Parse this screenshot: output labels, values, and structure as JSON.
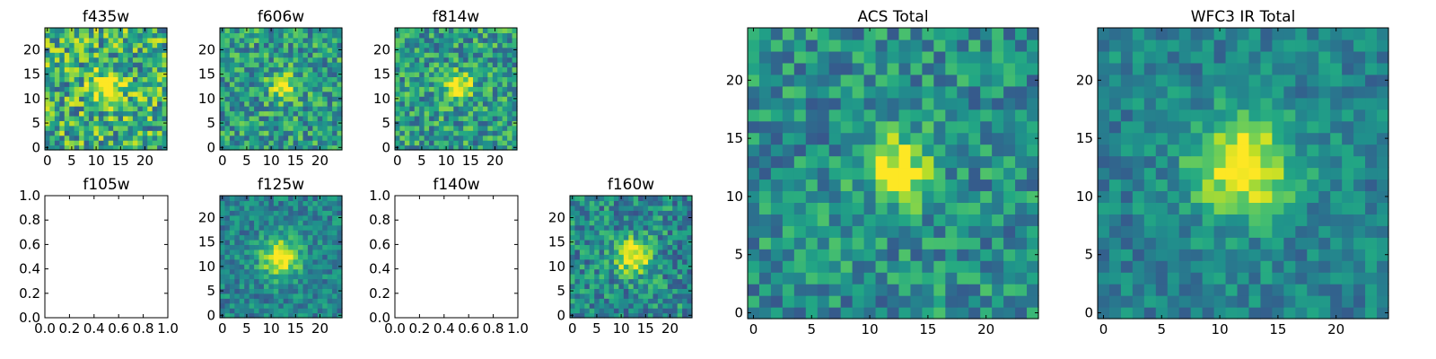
{
  "figure": {
    "description_type": "grid of image cutout panels (heatmaps)",
    "colormap": "viridis"
  },
  "chart_data": [
    {
      "type": "heatmap",
      "title": "f435w",
      "has_image": true,
      "x_ticks": [
        0,
        5,
        10,
        15,
        20
      ],
      "y_ticks": [
        0,
        5,
        10,
        15,
        20
      ],
      "xlim": [
        -0.5,
        24.5
      ],
      "ylim": [
        -0.5,
        24.5
      ],
      "grid_size": 25,
      "source": {
        "x": 12.5,
        "y": 12.5,
        "sigma": 2.2,
        "amp": 0.55
      },
      "noise": 0.42,
      "background": 0.62,
      "seed": 11
    },
    {
      "type": "heatmap",
      "title": "f606w",
      "has_image": true,
      "x_ticks": [
        0,
        5,
        10,
        15,
        20
      ],
      "y_ticks": [
        0,
        5,
        10,
        15,
        20
      ],
      "xlim": [
        -0.5,
        24.5
      ],
      "ylim": [
        -0.5,
        24.5
      ],
      "grid_size": 25,
      "source": {
        "x": 12.5,
        "y": 12.5,
        "sigma": 1.9,
        "amp": 0.5
      },
      "noise": 0.33,
      "background": 0.55,
      "seed": 23
    },
    {
      "type": "heatmap",
      "title": "f814w",
      "has_image": true,
      "x_ticks": [
        0,
        5,
        10,
        15,
        20
      ],
      "y_ticks": [
        0,
        5,
        10,
        15,
        20
      ],
      "xlim": [
        -0.5,
        24.5
      ],
      "ylim": [
        -0.5,
        24.5
      ],
      "grid_size": 25,
      "source": {
        "x": 12.5,
        "y": 12.5,
        "sigma": 1.9,
        "amp": 0.55
      },
      "noise": 0.33,
      "background": 0.55,
      "seed": 37
    },
    {
      "type": "heatmap",
      "title": "f105w",
      "has_image": false,
      "x_ticks": [
        "0.0",
        "0.2",
        "0.4",
        "0.6",
        "0.8",
        "1.0"
      ],
      "y_ticks": [
        "0.0",
        "0.2",
        "0.4",
        "0.6",
        "0.8",
        "1.0"
      ],
      "xlim": [
        0,
        1
      ],
      "ylim": [
        0,
        1
      ]
    },
    {
      "type": "heatmap",
      "title": "f125w",
      "has_image": true,
      "x_ticks": [
        0,
        5,
        10,
        15,
        20
      ],
      "y_ticks": [
        0,
        5,
        10,
        15,
        20
      ],
      "xlim": [
        -0.5,
        24.5
      ],
      "ylim": [
        -0.5,
        24.5
      ],
      "grid_size": 25,
      "source": {
        "x": 12.0,
        "y": 12.0,
        "sigma": 2.8,
        "amp": 0.6
      },
      "noise": 0.22,
      "background": 0.45,
      "seed": 41
    },
    {
      "type": "heatmap",
      "title": "f140w",
      "has_image": false,
      "x_ticks": [
        "0.0",
        "0.2",
        "0.4",
        "0.6",
        "0.8",
        "1.0"
      ],
      "y_ticks": [
        "0.0",
        "0.2",
        "0.4",
        "0.6",
        "0.8",
        "1.0"
      ],
      "xlim": [
        0,
        1
      ],
      "ylim": [
        0,
        1
      ]
    },
    {
      "type": "heatmap",
      "title": "f160w",
      "has_image": true,
      "x_ticks": [
        0,
        5,
        10,
        15,
        20
      ],
      "y_ticks": [
        0,
        5,
        10,
        15,
        20
      ],
      "xlim": [
        -0.5,
        24.5
      ],
      "ylim": [
        -0.5,
        24.5
      ],
      "grid_size": 25,
      "source": {
        "x": 12.5,
        "y": 12.0,
        "sigma": 2.5,
        "amp": 0.6
      },
      "noise": 0.3,
      "background": 0.48,
      "seed": 53
    },
    {
      "type": "heatmap",
      "title": "ACS Total",
      "has_image": true,
      "x_ticks": [
        0,
        5,
        10,
        15,
        20
      ],
      "y_ticks": [
        0,
        5,
        10,
        15,
        20
      ],
      "xlim": [
        -0.5,
        24.5
      ],
      "ylim": [
        -0.5,
        24.5
      ],
      "grid_size": 25,
      "source": {
        "x": 12.5,
        "y": 12.5,
        "sigma": 2.0,
        "amp": 0.55
      },
      "noise": 0.28,
      "background": 0.5,
      "seed": 67
    },
    {
      "type": "heatmap",
      "title": "WFC3 IR Total",
      "has_image": true,
      "x_ticks": [
        0,
        5,
        10,
        15,
        20
      ],
      "y_ticks": [
        0,
        5,
        10,
        15,
        20
      ],
      "xlim": [
        -0.5,
        24.5
      ],
      "ylim": [
        -0.5,
        24.5
      ],
      "grid_size": 25,
      "source": {
        "x": 12.0,
        "y": 12.5,
        "sigma": 3.0,
        "amp": 0.6
      },
      "noise": 0.2,
      "background": 0.45,
      "seed": 79
    }
  ]
}
